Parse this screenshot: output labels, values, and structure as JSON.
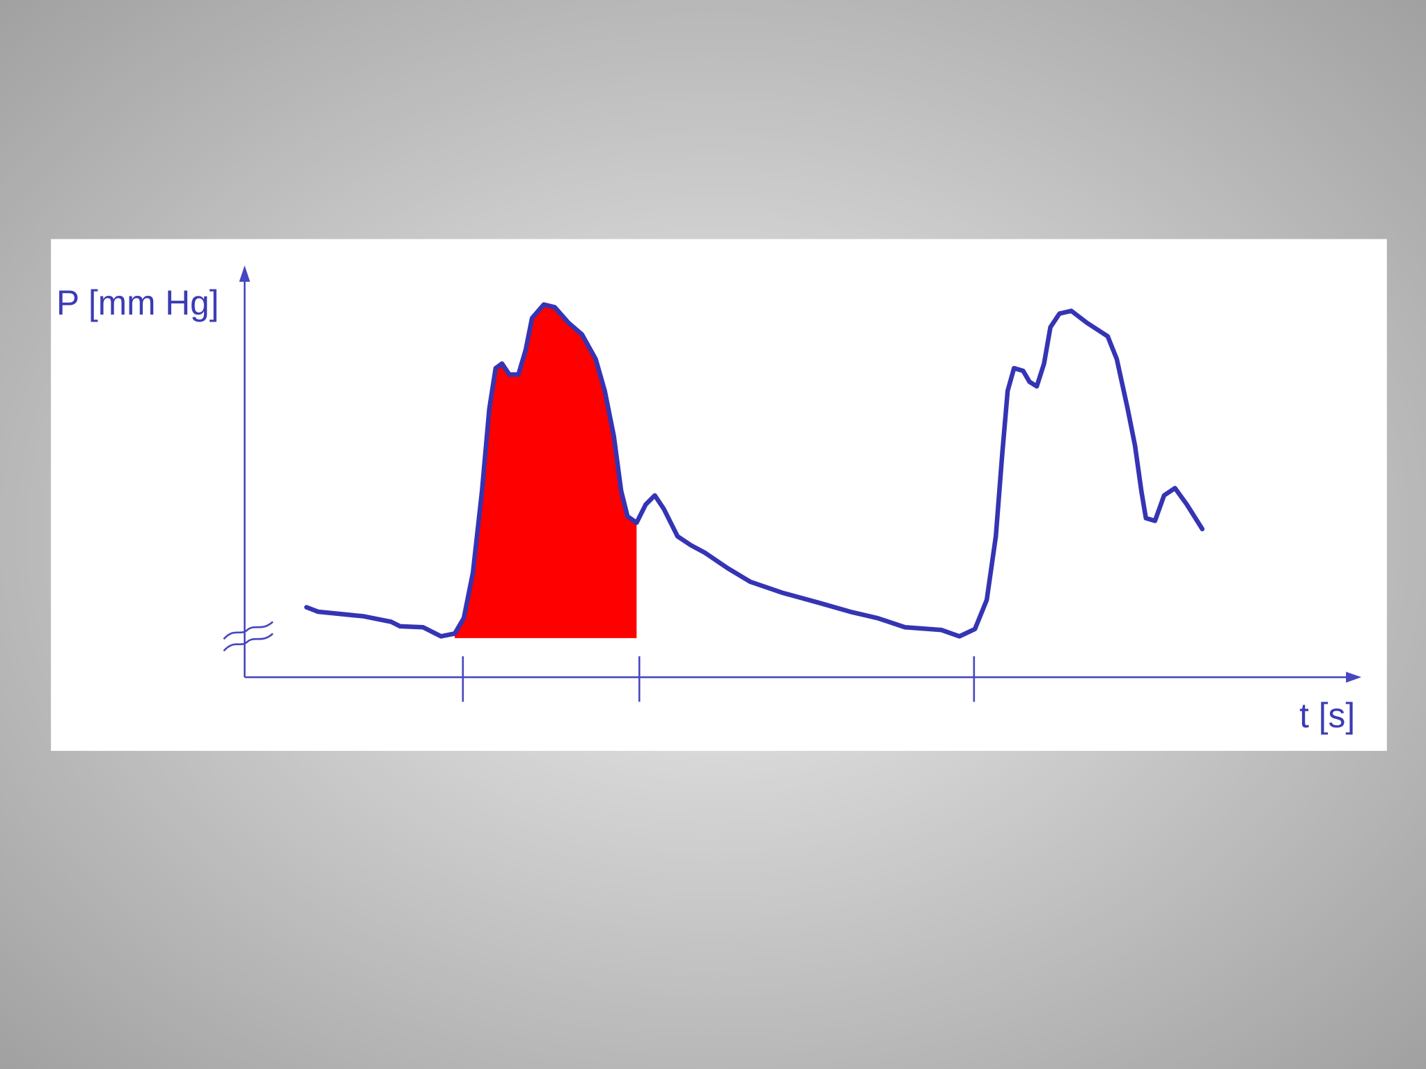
{
  "y_axis_label": "P [mm Hg]",
  "x_axis_label": "t [s]"
}
